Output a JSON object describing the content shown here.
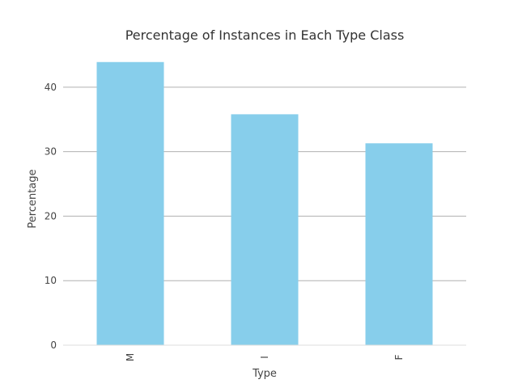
{
  "chart_data": {
    "type": "bar",
    "title": "Percentage of Instances in Each Type Class",
    "xlabel": "Type",
    "ylabel": "Percentage",
    "categories": [
      "M",
      "I",
      "F"
    ],
    "values": [
      43.9,
      35.8,
      31.3
    ],
    "ylim": [
      0,
      46
    ],
    "yticks": [
      0,
      10,
      20,
      30,
      40
    ],
    "grid": "horizontal",
    "bar_color": "#87ceeb"
  }
}
